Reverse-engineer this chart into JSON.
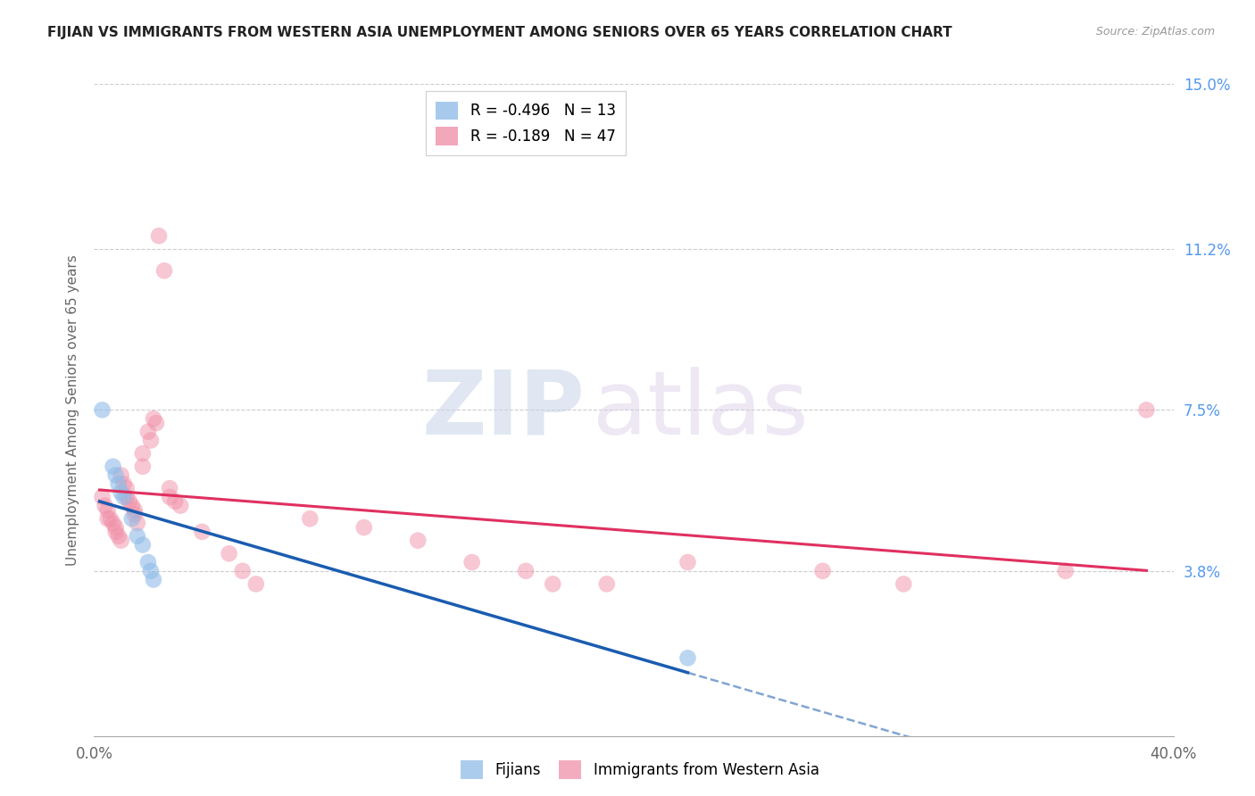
{
  "title": "FIJIAN VS IMMIGRANTS FROM WESTERN ASIA UNEMPLOYMENT AMONG SENIORS OVER 65 YEARS CORRELATION CHART",
  "source": "Source: ZipAtlas.com",
  "ylabel": "Unemployment Among Seniors over 65 years",
  "xlim": [
    0.0,
    0.4
  ],
  "ylim": [
    0.0,
    0.15
  ],
  "xtick_vals": [
    0.0,
    0.1,
    0.2,
    0.3,
    0.4
  ],
  "xtick_labels": [
    "0.0%",
    "",
    "",
    "",
    "40.0%"
  ],
  "ytick_right_vals": [
    0.0,
    0.038,
    0.075,
    0.112,
    0.15
  ],
  "ytick_right_labels": [
    "",
    "3.8%",
    "7.5%",
    "11.2%",
    "15.0%"
  ],
  "fijian_color": "#90bce8",
  "western_asia_color": "#f090a8",
  "fijian_line_color": "#1a5cb0",
  "western_asia_line_color": "#e03060",
  "fijian_scatter": [
    [
      0.003,
      0.075
    ],
    [
      0.007,
      0.062
    ],
    [
      0.008,
      0.06
    ],
    [
      0.009,
      0.058
    ],
    [
      0.01,
      0.056
    ],
    [
      0.011,
      0.055
    ],
    [
      0.014,
      0.05
    ],
    [
      0.016,
      0.046
    ],
    [
      0.018,
      0.044
    ],
    [
      0.02,
      0.04
    ],
    [
      0.021,
      0.038
    ],
    [
      0.022,
      0.036
    ],
    [
      0.22,
      0.018
    ]
  ],
  "western_asia_scatter": [
    [
      0.003,
      0.055
    ],
    [
      0.004,
      0.053
    ],
    [
      0.005,
      0.052
    ],
    [
      0.005,
      0.05
    ],
    [
      0.006,
      0.05
    ],
    [
      0.007,
      0.049
    ],
    [
      0.008,
      0.048
    ],
    [
      0.008,
      0.047
    ],
    [
      0.009,
      0.046
    ],
    [
      0.01,
      0.045
    ],
    [
      0.01,
      0.06
    ],
    [
      0.011,
      0.058
    ],
    [
      0.012,
      0.057
    ],
    [
      0.012,
      0.055
    ],
    [
      0.013,
      0.054
    ],
    [
      0.014,
      0.053
    ],
    [
      0.015,
      0.052
    ],
    [
      0.015,
      0.051
    ],
    [
      0.016,
      0.049
    ],
    [
      0.018,
      0.065
    ],
    [
      0.018,
      0.062
    ],
    [
      0.02,
      0.07
    ],
    [
      0.021,
      0.068
    ],
    [
      0.022,
      0.073
    ],
    [
      0.023,
      0.072
    ],
    [
      0.024,
      0.115
    ],
    [
      0.026,
      0.107
    ],
    [
      0.028,
      0.057
    ],
    [
      0.028,
      0.055
    ],
    [
      0.03,
      0.054
    ],
    [
      0.032,
      0.053
    ],
    [
      0.04,
      0.047
    ],
    [
      0.05,
      0.042
    ],
    [
      0.055,
      0.038
    ],
    [
      0.06,
      0.035
    ],
    [
      0.08,
      0.05
    ],
    [
      0.1,
      0.048
    ],
    [
      0.12,
      0.045
    ],
    [
      0.14,
      0.04
    ],
    [
      0.16,
      0.038
    ],
    [
      0.17,
      0.035
    ],
    [
      0.19,
      0.035
    ],
    [
      0.22,
      0.04
    ],
    [
      0.27,
      0.038
    ],
    [
      0.3,
      0.035
    ],
    [
      0.36,
      0.038
    ],
    [
      0.39,
      0.075
    ]
  ],
  "fijian_R": -0.496,
  "fijian_N": 13,
  "western_asia_R": -0.189,
  "western_asia_N": 47
}
